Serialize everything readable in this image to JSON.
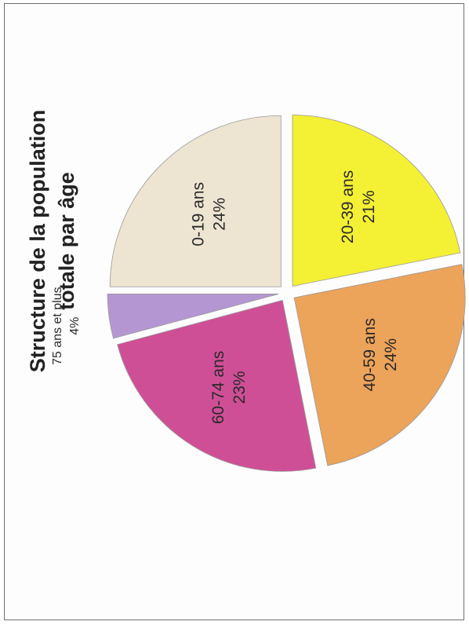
{
  "chart_data": {
    "type": "pie",
    "title": "Structure de la population totale par âge",
    "title_lines": [
      "Structure de la population",
      "totale par âge"
    ],
    "slices": [
      {
        "label": "0-19 ans",
        "value": 24,
        "display": "24%",
        "color": "#ede4d2"
      },
      {
        "label": "20-39 ans",
        "value": 21,
        "display": "21%",
        "color": "#f4f034"
      },
      {
        "label": "40-59 ans",
        "value": 24,
        "display": "24%",
        "color": "#eca35a"
      },
      {
        "label": "60-74 ans",
        "value": 23,
        "display": "23%",
        "color": "#cf4f96"
      },
      {
        "label": "75 ans et plus",
        "value": 4,
        "display": "4%",
        "color": "#b497d2"
      }
    ],
    "rotation": "page rotated 90° counter-clockwise",
    "exploded": true
  }
}
